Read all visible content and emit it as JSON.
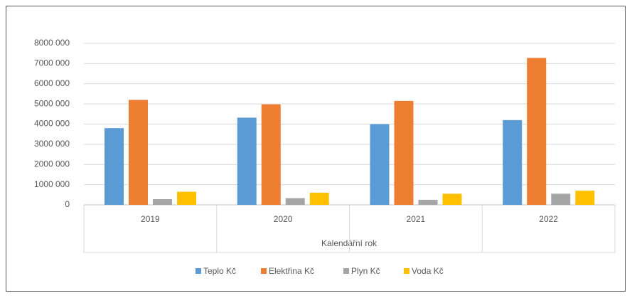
{
  "chart_data": {
    "type": "bar",
    "x_label": "Kalendářní rok",
    "categories": [
      "2019",
      "2020",
      "2021",
      "2022"
    ],
    "series": [
      {
        "name": "Teplo Kč",
        "color": "#5b9bd5",
        "values": [
          3800000,
          4320000,
          4000000,
          4200000
        ]
      },
      {
        "name": "Elektřina Kč",
        "color": "#ed7d31",
        "values": [
          5200000,
          4980000,
          5150000,
          7280000
        ]
      },
      {
        "name": "Plyn Kč",
        "color": "#a5a5a5",
        "values": [
          280000,
          330000,
          250000,
          550000
        ]
      },
      {
        "name": "Voda Kč",
        "color": "#ffc000",
        "values": [
          650000,
          600000,
          550000,
          700000
        ]
      }
    ],
    "ylim": [
      0,
      8000000
    ],
    "yticks": [
      0,
      {
        "value": 1000000,
        "label": "1000 000"
      },
      {
        "value": 2000000,
        "label": "2000 000"
      },
      {
        "value": 3000000,
        "label": "3000 000"
      },
      {
        "value": 4000000,
        "label": "4000 000"
      },
      {
        "value": 5000000,
        "label": "5000 000"
      },
      {
        "value": 6000000,
        "label": "6000 000"
      },
      {
        "value": 7000000,
        "label": "7000 000"
      },
      {
        "value": 8000000,
        "label": "8000 000"
      }
    ],
    "grid": true,
    "legend": "bottom"
  }
}
